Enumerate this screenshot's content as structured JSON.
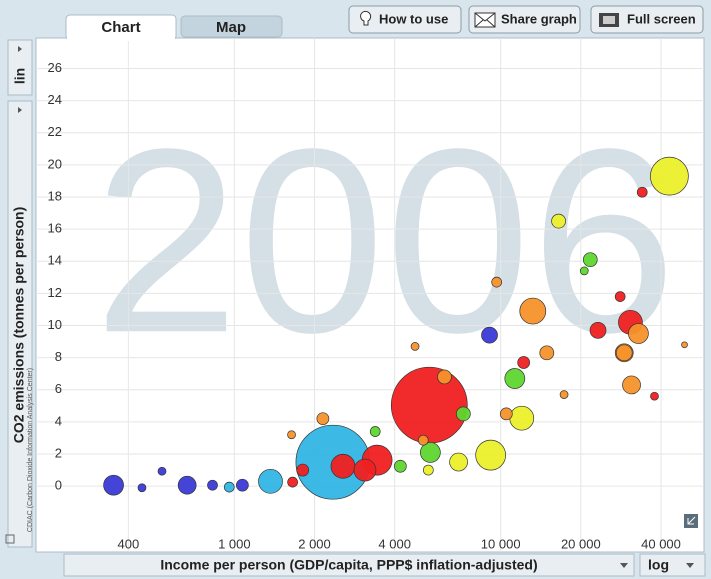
{
  "ui": {
    "tabs": [
      "Chart",
      "Map"
    ],
    "buttons": [
      "How to use",
      "Share graph",
      "Full screen"
    ],
    "y_scale_label": "lin",
    "x_scale_label": "log"
  },
  "chart_data": {
    "type": "bubble",
    "year": "2006",
    "y_label": "CO2 emissions (tonnes per person)",
    "y_subtitle": "CDIAC (Carbon Dioxide Information Analysis Center)",
    "x_label": "Income per person (GDP/capita, PPP$ inflation-adjusted)",
    "xlog": true,
    "grid": true,
    "xlim": [
      180,
      58000
    ],
    "ylim": [
      -4.1,
      27.9
    ],
    "xticks": [
      400,
      {
        "value": 1000,
        "label": "1 000"
      },
      {
        "value": 2000,
        "label": "2 000"
      },
      {
        "value": 4000,
        "label": "4 000"
      },
      {
        "value": 10000,
        "label": "10 000"
      },
      {
        "value": 20000,
        "label": "20 000"
      },
      {
        "value": 40000,
        "label": "40 000"
      }
    ],
    "yticks": [
      0,
      2,
      4,
      6,
      8,
      10,
      12,
      14,
      16,
      18,
      20,
      22,
      24,
      26
    ],
    "x": [
      5395,
      2345,
      43000,
      12000,
      13200,
      9170,
      3436,
      1367,
      30700,
      2558,
      3093,
      352,
      11300,
      5445,
      665,
      32900,
      6950,
      29100,
      31000,
      9080,
      23200,
      29100,
      16500,
      17300,
      14900,
      21700,
      6150,
      12200,
      1072,
      4200,
      2150,
      7240,
      10500,
      1806,
      9660,
      28100,
      34000,
      3380,
      828,
      957,
      1655,
      5350,
      5120,
      535,
      1640,
      450,
      4770,
      49000,
      37800,
      20600
    ],
    "y": [
      5.04,
      1.49,
      19.3,
      4.23,
      10.9,
      1.93,
      1.62,
      0.3,
      10.2,
      1.24,
      1.0,
      0.06,
      6.7,
      2.1,
      0.06,
      9.5,
      1.5,
      8.3,
      6.3,
      9.4,
      9.7,
      8.3,
      16.5,
      5.7,
      8.3,
      14.1,
      6.8,
      7.7,
      0.06,
      1.24,
      4.2,
      4.5,
      4.5,
      1.0,
      12.7,
      11.8,
      18.3,
      3.4,
      0.06,
      -0.06,
      0.25,
      1.0,
      2.86,
      0.93,
      3.2,
      -0.1,
      8.7,
      8.8,
      5.6,
      13.4
    ],
    "sizes": [
      38,
      37,
      19,
      12,
      13,
      15,
      15,
      12,
      12,
      12,
      11,
      10,
      10,
      10,
      9,
      10,
      9,
      9,
      9,
      8,
      8,
      8,
      7,
      4,
      7,
      7,
      7,
      6,
      6,
      6,
      6,
      7,
      6,
      6,
      5,
      5,
      5,
      5,
      5,
      5,
      5,
      5,
      5,
      4,
      4,
      4,
      4,
      3,
      4,
      4
    ],
    "colors": [
      "#f02020",
      "#33b5e5",
      "#ecf02a",
      "#ecf02a",
      "#f5922a",
      "#ecf02a",
      "#f02020",
      "#33b5e5",
      "#f02020",
      "#f02020",
      "#f02020",
      "#3a3ad6",
      "#5fd62e",
      "#5fd62e",
      "#3a3ad6",
      "#f5922a",
      "#ecf02a",
      "#f5922a",
      "#f5922a",
      "#3a3ad6",
      "#f02020",
      "#f5922a",
      "#ecf02a",
      "#f5922a",
      "#f5922a",
      "#5fd62e",
      "#f5922a",
      "#f02020",
      "#3a3ad6",
      "#5fd62e",
      "#f5922a",
      "#5fd62e",
      "#f5922a",
      "#f02020",
      "#f5922a",
      "#f02020",
      "#f02020",
      "#5fd62e",
      "#3a3ad6",
      "#33b5e5",
      "#f02020",
      "#ecf02a",
      "#f5922a",
      "#3a3ad6",
      "#f5922a",
      "#3a3ad6",
      "#f5922a",
      "#f5922a",
      "#f02020",
      "#5fd62e"
    ]
  }
}
